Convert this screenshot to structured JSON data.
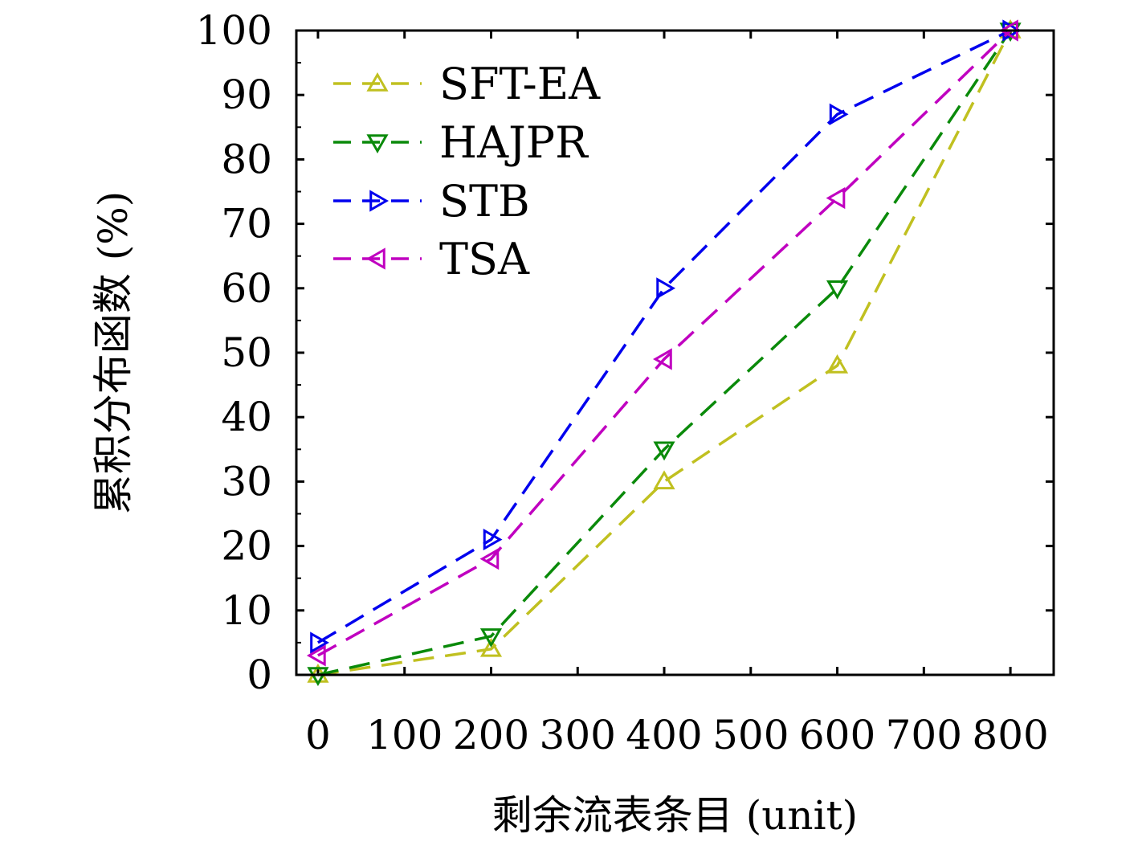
{
  "chart_data": {
    "type": "line",
    "title": "",
    "xlabel": "剩余流表条目 (unit)",
    "ylabel": "累积分布函数 (%)",
    "x": [
      0,
      200,
      400,
      600,
      800
    ],
    "xlim": [
      -25,
      850
    ],
    "ylim": [
      0,
      100
    ],
    "x_ticks": [
      "0",
      "100",
      "200",
      "300",
      "400",
      "500",
      "600",
      "700",
      "800"
    ],
    "y_ticks": [
      "0",
      "10",
      "20",
      "30",
      "40",
      "50",
      "60",
      "70",
      "80",
      "90",
      "100"
    ],
    "grid": false,
    "legend_position": "top-left",
    "series": [
      {
        "name": "SFT-EA",
        "values": [
          0,
          4,
          30,
          48,
          100
        ],
        "color": "#c0c020",
        "marker": "triangle-up",
        "line_style": "dashed"
      },
      {
        "name": "HAJPR",
        "values": [
          0,
          6,
          35,
          60,
          100
        ],
        "color": "#0a8a0a",
        "marker": "triangle-down",
        "line_style": "dashed"
      },
      {
        "name": "STB",
        "values": [
          5,
          21,
          60,
          87,
          100
        ],
        "color": "#0000ee",
        "marker": "triangle-right",
        "line_style": "dashed"
      },
      {
        "name": "TSA",
        "values": [
          3,
          18,
          49,
          74,
          100
        ],
        "color": "#c000c0",
        "marker": "triangle-left",
        "line_style": "dashed"
      }
    ]
  }
}
